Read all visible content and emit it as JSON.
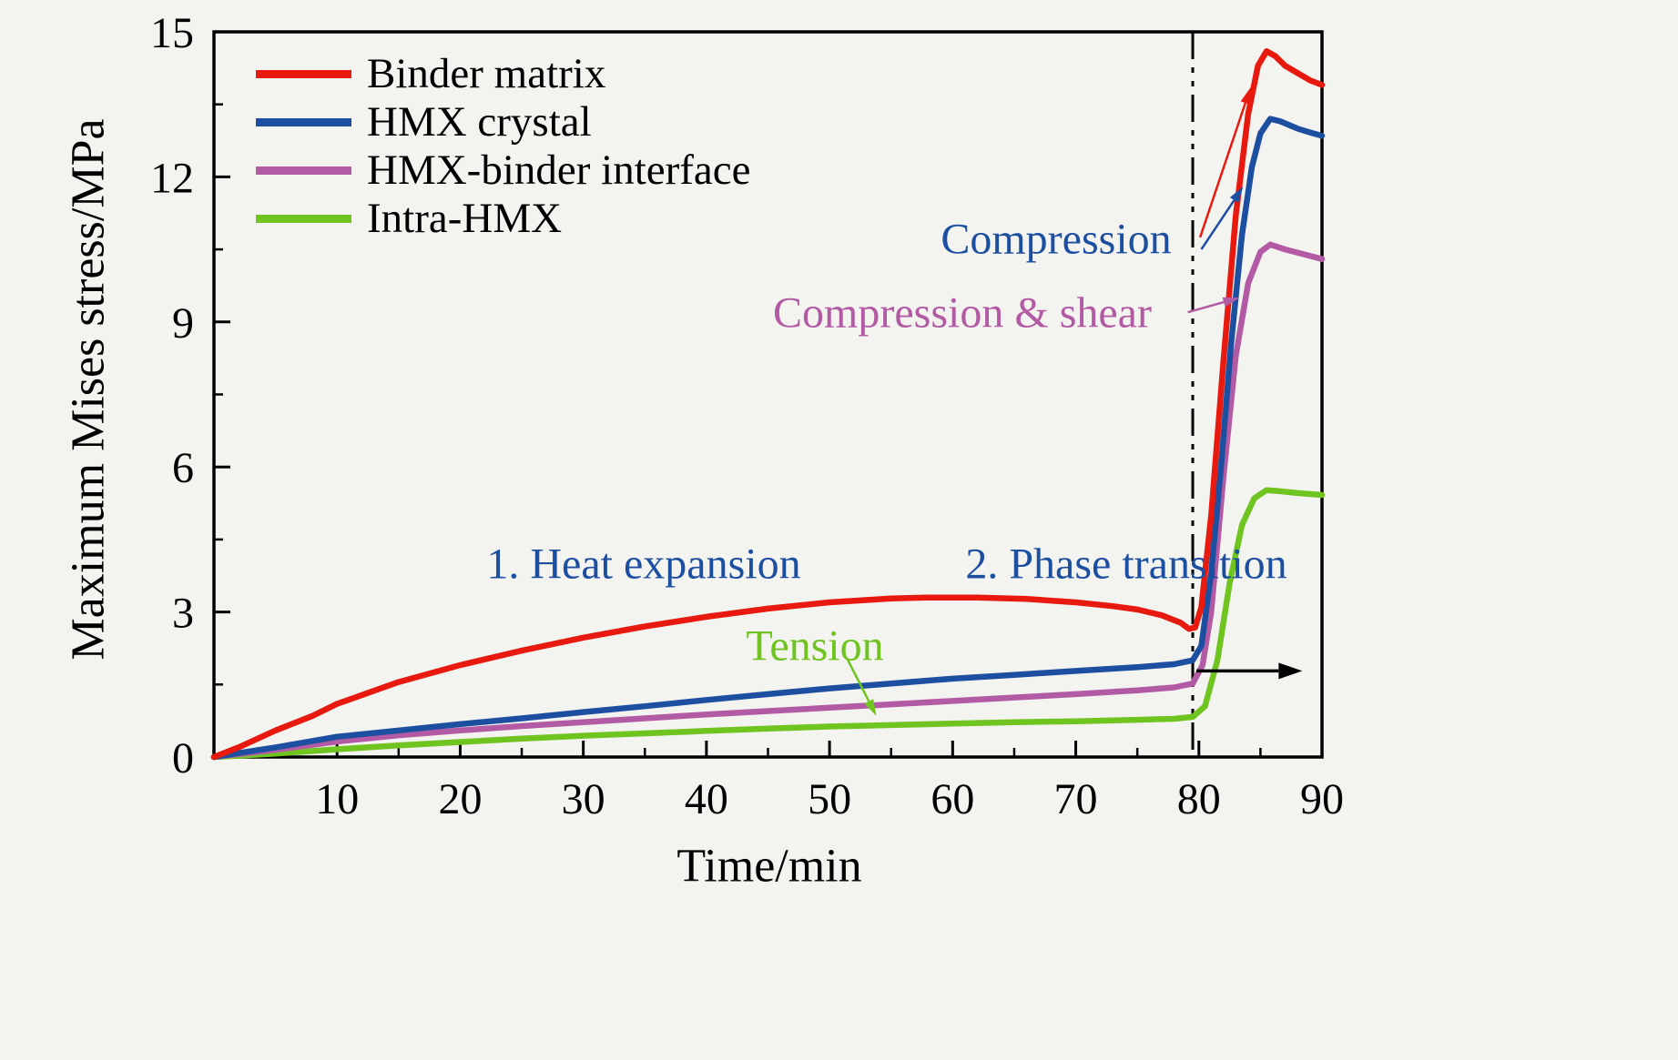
{
  "chart_data": {
    "type": "line",
    "title": "",
    "xlabel": "Time/min",
    "ylabel": "Maximum Mises stress/MPa",
    "xlim": [
      0,
      90
    ],
    "ylim": [
      0,
      15
    ],
    "xticks": [
      10,
      20,
      30,
      40,
      50,
      60,
      70,
      80,
      90
    ],
    "yticks": [
      0,
      3,
      6,
      9,
      12,
      15
    ],
    "grid": false,
    "legend_position": "top-left",
    "background": "#f3f3f0",
    "frame_color": "#000000",
    "series": [
      {
        "name": "Binder matrix",
        "color": "#e8190f",
        "points": [
          [
            0,
            0
          ],
          [
            2,
            0.2
          ],
          [
            5,
            0.55
          ],
          [
            8,
            0.85
          ],
          [
            10,
            1.1
          ],
          [
            15,
            1.55
          ],
          [
            20,
            1.9
          ],
          [
            25,
            2.2
          ],
          [
            30,
            2.47
          ],
          [
            35,
            2.7
          ],
          [
            40,
            2.9
          ],
          [
            45,
            3.07
          ],
          [
            50,
            3.2
          ],
          [
            55,
            3.28
          ],
          [
            58,
            3.3
          ],
          [
            62,
            3.3
          ],
          [
            66,
            3.27
          ],
          [
            70,
            3.2
          ],
          [
            73,
            3.12
          ],
          [
            75,
            3.05
          ],
          [
            77,
            2.93
          ],
          [
            78.5,
            2.78
          ],
          [
            79.2,
            2.65
          ],
          [
            79.7,
            2.68
          ],
          [
            80.2,
            3.1
          ],
          [
            81,
            5.0
          ],
          [
            82,
            8.2
          ],
          [
            83,
            11.2
          ],
          [
            84,
            13.3
          ],
          [
            84.8,
            14.3
          ],
          [
            85.5,
            14.6
          ],
          [
            86.2,
            14.5
          ],
          [
            87,
            14.3
          ],
          [
            88,
            14.15
          ],
          [
            89,
            14.0
          ],
          [
            90,
            13.9
          ]
        ]
      },
      {
        "name": "HMX crystal",
        "color": "#1d4fa1",
        "points": [
          [
            0,
            0
          ],
          [
            3,
            0.12
          ],
          [
            5,
            0.2
          ],
          [
            10,
            0.42
          ],
          [
            15,
            0.55
          ],
          [
            20,
            0.68
          ],
          [
            25,
            0.8
          ],
          [
            30,
            0.93
          ],
          [
            35,
            1.05
          ],
          [
            40,
            1.18
          ],
          [
            45,
            1.3
          ],
          [
            50,
            1.42
          ],
          [
            55,
            1.52
          ],
          [
            60,
            1.62
          ],
          [
            65,
            1.7
          ],
          [
            70,
            1.78
          ],
          [
            75,
            1.86
          ],
          [
            78,
            1.92
          ],
          [
            79.5,
            2.0
          ],
          [
            80.2,
            2.3
          ],
          [
            81,
            3.8
          ],
          [
            81.8,
            6.0
          ],
          [
            82.6,
            8.5
          ],
          [
            83.5,
            10.8
          ],
          [
            84.3,
            12.2
          ],
          [
            85,
            12.9
          ],
          [
            85.8,
            13.2
          ],
          [
            86.6,
            13.15
          ],
          [
            88,
            13.0
          ],
          [
            89,
            12.92
          ],
          [
            90,
            12.85
          ]
        ]
      },
      {
        "name": "HMX-binder interface",
        "color": "#b35aa5",
        "points": [
          [
            0,
            0
          ],
          [
            5,
            0.15
          ],
          [
            10,
            0.32
          ],
          [
            15,
            0.45
          ],
          [
            20,
            0.55
          ],
          [
            25,
            0.64
          ],
          [
            30,
            0.72
          ],
          [
            35,
            0.8
          ],
          [
            40,
            0.88
          ],
          [
            45,
            0.95
          ],
          [
            50,
            1.02
          ],
          [
            55,
            1.09
          ],
          [
            60,
            1.16
          ],
          [
            65,
            1.23
          ],
          [
            70,
            1.3
          ],
          [
            75,
            1.38
          ],
          [
            78,
            1.44
          ],
          [
            79.5,
            1.52
          ],
          [
            80.3,
            1.9
          ],
          [
            81,
            3.0
          ],
          [
            82,
            5.8
          ],
          [
            83,
            8.3
          ],
          [
            84,
            9.8
          ],
          [
            85,
            10.45
          ],
          [
            85.8,
            10.6
          ],
          [
            87,
            10.5
          ],
          [
            88.5,
            10.4
          ],
          [
            90,
            10.3
          ]
        ]
      },
      {
        "name": "Intra-HMX",
        "color": "#6fc420",
        "points": [
          [
            0,
            0
          ],
          [
            5,
            0.07
          ],
          [
            10,
            0.16
          ],
          [
            15,
            0.24
          ],
          [
            20,
            0.31
          ],
          [
            25,
            0.38
          ],
          [
            30,
            0.44
          ],
          [
            35,
            0.49
          ],
          [
            40,
            0.54
          ],
          [
            45,
            0.59
          ],
          [
            50,
            0.63
          ],
          [
            55,
            0.66
          ],
          [
            60,
            0.69
          ],
          [
            65,
            0.72
          ],
          [
            70,
            0.74
          ],
          [
            75,
            0.77
          ],
          [
            78,
            0.79
          ],
          [
            79.5,
            0.83
          ],
          [
            80.5,
            1.05
          ],
          [
            81.5,
            2.0
          ],
          [
            82.5,
            3.6
          ],
          [
            83.5,
            4.8
          ],
          [
            84.5,
            5.35
          ],
          [
            85.5,
            5.52
          ],
          [
            86.5,
            5.5
          ],
          [
            88,
            5.46
          ],
          [
            90,
            5.42
          ]
        ]
      }
    ],
    "event_line": {
      "x": 79.5,
      "style": "dash-dot",
      "color": "#000000"
    },
    "annotations": [
      {
        "text": "Compression",
        "color": "#1d4fa1"
      },
      {
        "text": "Compression & shear",
        "color": "#b35aa5"
      },
      {
        "text": "1. Heat expansion",
        "color": "#1d4fa1"
      },
      {
        "text": "2. Phase transition",
        "color": "#1d4fa1"
      },
      {
        "text": "Tension",
        "color": "#6fc420"
      }
    ],
    "arrows": [
      {
        "color": "#e8190f",
        "from": [
          80.1,
          10.75
        ],
        "to": [
          84.2,
          13.85
        ]
      },
      {
        "color": "#1d4fa1",
        "from": [
          80.2,
          10.5
        ],
        "to": [
          83.6,
          11.8
        ]
      },
      {
        "color": "#b35aa5",
        "from": [
          79.1,
          9.2
        ],
        "to": [
          83.3,
          9.5
        ]
      },
      {
        "color": "#6fc420",
        "from": [
          51.4,
          2.05
        ],
        "to": [
          53.8,
          0.85
        ]
      },
      {
        "color": "#000000",
        "from": [
          79.8,
          1.78
        ],
        "to": [
          88.4,
          1.78
        ],
        "thick": true
      }
    ]
  }
}
